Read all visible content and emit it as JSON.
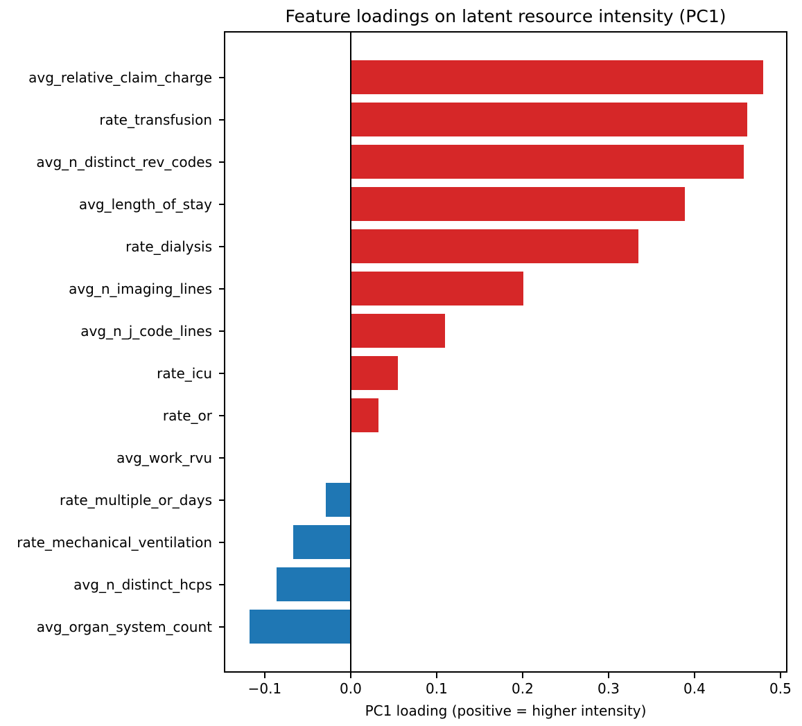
{
  "chart_data": {
    "type": "bar",
    "orientation": "horizontal",
    "title": "Feature loadings on latent resource intensity (PC1)",
    "xlabel": "PC1 loading (positive = higher intensity)",
    "ylabel": "",
    "categories": [
      "avg_relative_claim_charge",
      "rate_transfusion",
      "avg_n_distinct_rev_codes",
      "avg_length_of_stay",
      "rate_dialysis",
      "avg_n_imaging_lines",
      "avg_n_j_code_lines",
      "rate_icu",
      "rate_or",
      "avg_work_rvu",
      "rate_multiple_or_days",
      "rate_mechanical_ventilation",
      "avg_n_distinct_hcps",
      "avg_organ_system_count"
    ],
    "values": [
      0.48,
      0.461,
      0.457,
      0.389,
      0.335,
      0.201,
      0.11,
      0.055,
      0.032,
      0.0,
      -0.029,
      -0.067,
      -0.086,
      -0.118
    ],
    "xlim": [
      -0.1475,
      0.5081
    ],
    "xticks": [
      -0.1,
      0.0,
      0.1,
      0.2,
      0.3,
      0.4,
      0.5
    ],
    "xtick_labels": [
      "−0.1",
      "0.0",
      "0.1",
      "0.2",
      "0.3",
      "0.4",
      "0.5"
    ],
    "positive_color": "#d62728",
    "negative_color": "#1f77b4",
    "zero_line": true,
    "grid": false,
    "legend": null,
    "bar_height_fraction": 0.8
  }
}
